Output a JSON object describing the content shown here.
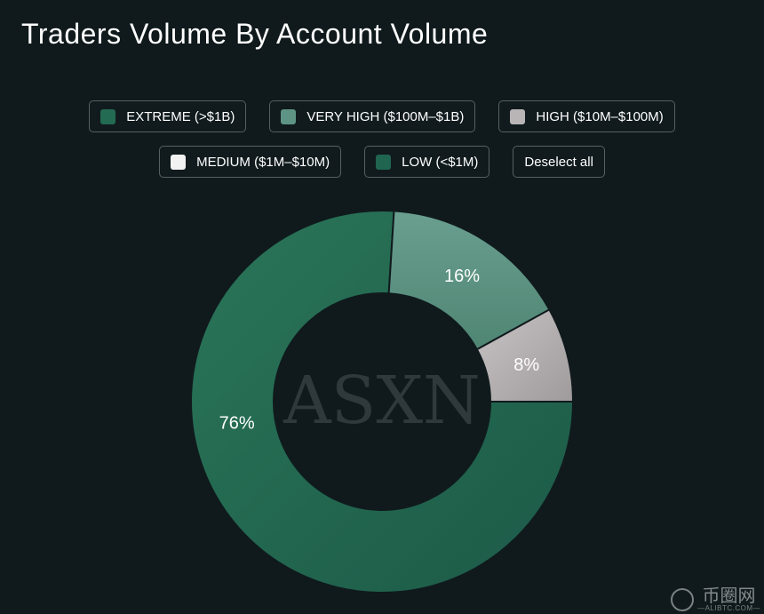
{
  "title": "Traders Volume By Account Volume",
  "legend": {
    "items": [
      {
        "label": "EXTREME (>$1B)",
        "color": "#236b53"
      },
      {
        "label": "VERY HIGH ($100M–$1B)",
        "color": "#5e9484"
      },
      {
        "label": "HIGH ($10M–$100M)",
        "color": "#b9b4b5"
      },
      {
        "label": "MEDIUM ($1M–$10M)",
        "color": "#f2f2f2"
      },
      {
        "label": "LOW (<$1M)",
        "color": "#1f6550"
      }
    ],
    "deselect_label": "Deselect all"
  },
  "chart_data": {
    "type": "pie",
    "donut": true,
    "title": "Traders Volume By Account Volume",
    "categories": [
      "EXTREME (>$1B)",
      "VERY HIGH ($100M–$1B)",
      "HIGH ($10M–$100M)",
      "MEDIUM ($1M–$10M)",
      "LOW (<$1M)"
    ],
    "values": [
      76,
      16,
      8,
      0,
      0
    ],
    "data_labels": [
      "76%",
      "16%",
      "8%",
      "",
      ""
    ],
    "colors": [
      "#236b53",
      "#5e9484",
      "#b9b4b5",
      "#f2f2f2",
      "#1f6550"
    ],
    "legend_position": "top-center",
    "center_watermark": "ASXN"
  },
  "site_watermark": {
    "main": "币圈网",
    "sub": "—ALIBTC.COM—",
    "icon": "logo-icon"
  }
}
